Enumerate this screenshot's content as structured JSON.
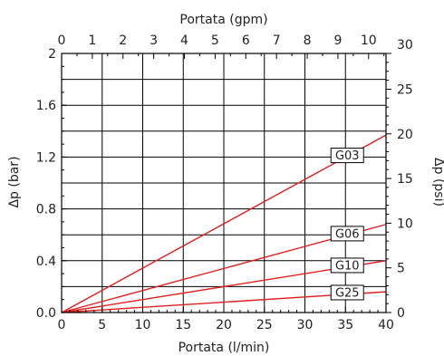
{
  "chart_data": {
    "type": "line",
    "title": "",
    "xlabel": "Portata (l/min)",
    "ylabel": "Δp (bar)",
    "x2label": "Portata (gpm)",
    "y2label": "Δp (psi)",
    "xlim": [
      0,
      40
    ],
    "ylim": [
      0,
      2
    ],
    "x2lim": [
      0,
      10.567
    ],
    "y2lim": [
      0,
      29.0
    ],
    "x_ticks": [
      "0",
      "5",
      "10",
      "15",
      "20",
      "25",
      "30",
      "35",
      "40"
    ],
    "y_ticks": [
      "0.0",
      "0.4",
      "0.8",
      "1.2",
      "1.6",
      "2"
    ],
    "x2_ticks": [
      "0",
      "1",
      "2",
      "3",
      "4",
      "5",
      "6",
      "7",
      "8",
      "9",
      "10"
    ],
    "y2_ticks": [
      "0",
      "5",
      "10",
      "15",
      "20",
      "25",
      "30"
    ],
    "grid": true,
    "colors": {
      "series": "#e02020",
      "grid": "#000000",
      "frame": "#000000",
      "label_box": "#000000"
    },
    "series": [
      {
        "name": "G03",
        "x": [
          0,
          40
        ],
        "y": [
          0,
          1.37
        ]
      },
      {
        "name": "G06",
        "x": [
          0,
          40
        ],
        "y": [
          0,
          0.68
        ]
      },
      {
        "name": "G10",
        "x": [
          0,
          40
        ],
        "y": [
          0,
          0.4
        ]
      },
      {
        "name": "G25",
        "x": [
          0,
          40
        ],
        "y": [
          0,
          0.16
        ]
      }
    ]
  }
}
